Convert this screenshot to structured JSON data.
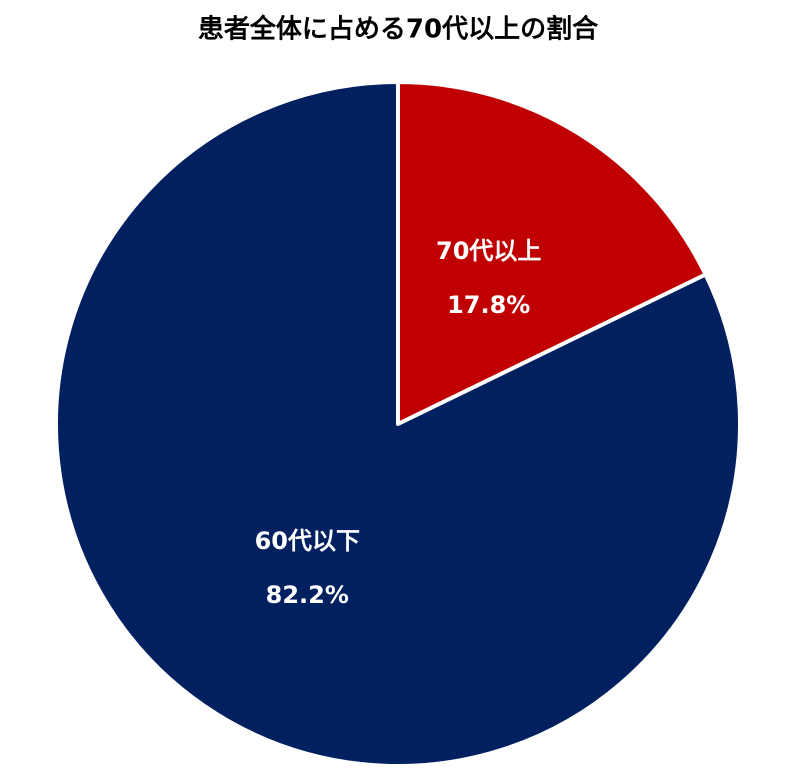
{
  "chart_data": {
    "type": "pie",
    "title": "患者全体に占める70代以上の割合",
    "categories": [
      "70代以上",
      "60代以下"
    ],
    "values": [
      17.8,
      82.2
    ],
    "value_labels": [
      "17.8%",
      "82.2%"
    ],
    "colors": [
      "#c00000",
      "#002060"
    ]
  }
}
